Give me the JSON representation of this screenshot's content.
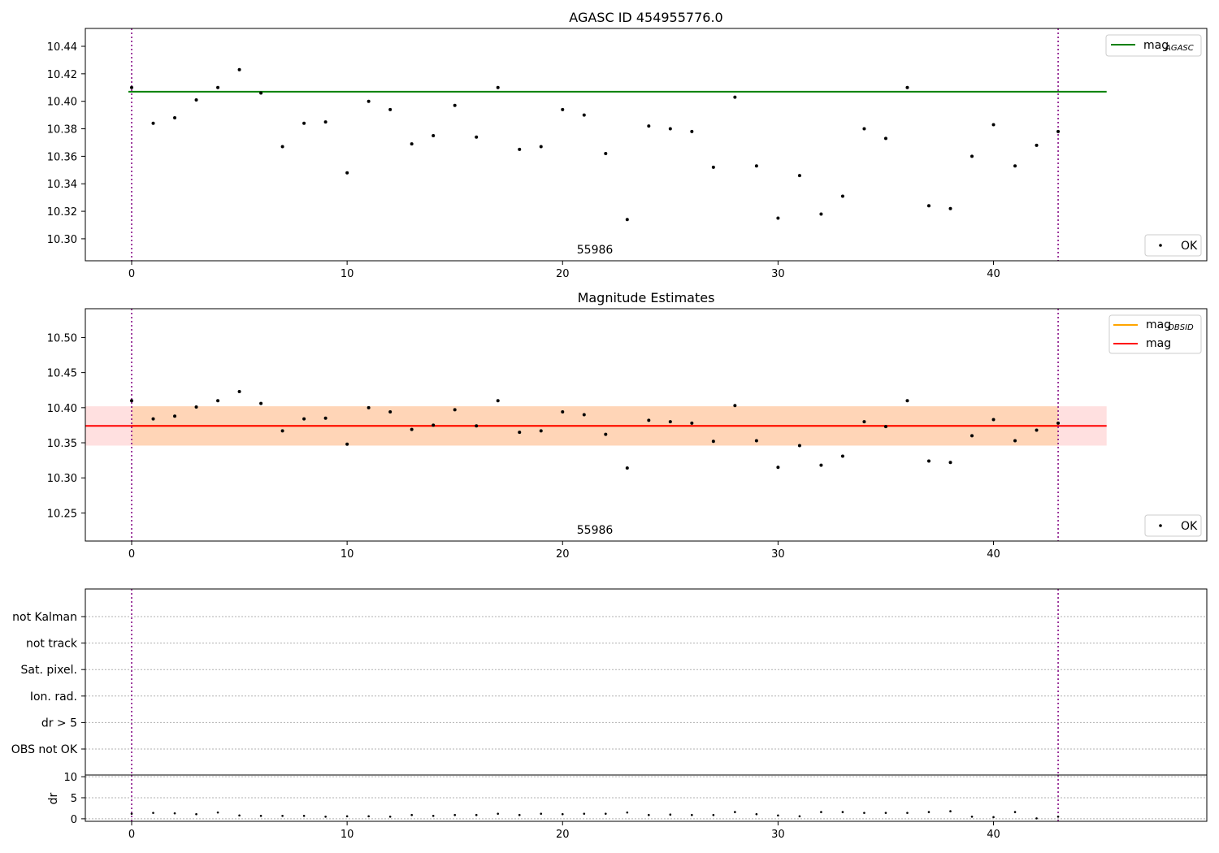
{
  "chart_data": [
    {
      "type": "scatter",
      "title": "AGASC ID 454955776.0",
      "xlim": [
        -2.15,
        49.9
      ],
      "ylim": [
        10.284,
        10.453
      ],
      "xticks": [
        0,
        10,
        20,
        30,
        40
      ],
      "yticks": [
        10.3,
        10.32,
        10.34,
        10.36,
        10.38,
        10.4,
        10.42,
        10.44
      ],
      "x": [
        0,
        1,
        2,
        3,
        4,
        5,
        6,
        7,
        8,
        9,
        10,
        11,
        12,
        13,
        14,
        15,
        16,
        17,
        18,
        19,
        20,
        21,
        22,
        23,
        24,
        25,
        26,
        27,
        28,
        29,
        30,
        31,
        32,
        33,
        34,
        35,
        36,
        37,
        38,
        39,
        40,
        41,
        42,
        43
      ],
      "y": [
        10.41,
        10.384,
        10.388,
        10.401,
        10.41,
        10.423,
        10.406,
        10.367,
        10.384,
        10.385,
        10.348,
        10.4,
        10.394,
        10.369,
        10.375,
        10.397,
        10.374,
        10.41,
        10.365,
        10.367,
        10.394,
        10.39,
        10.362,
        10.314,
        10.382,
        10.38,
        10.378,
        10.352,
        10.403,
        10.353,
        10.315,
        10.346,
        10.318,
        10.331,
        10.38,
        10.373,
        10.41,
        10.324,
        10.322,
        10.36,
        10.383,
        10.353,
        10.368,
        10.378
      ],
      "hline": {
        "y": 10.407,
        "x0": -0.15,
        "x1": 45.25,
        "color": "#008000"
      },
      "vlines": [
        0,
        43
      ],
      "obsid_label": {
        "text": "55986",
        "x": 21.5
      },
      "legend_upper": [
        {
          "label": "mag",
          "sub": "AGASC",
          "color": "#008000"
        }
      ],
      "legend_lower": [
        {
          "label": "OK",
          "color": "#000000"
        }
      ]
    },
    {
      "type": "scatter",
      "title": "Magnitude Estimates",
      "xlim": [
        -2.15,
        49.9
      ],
      "ylim": [
        10.21,
        10.541
      ],
      "xticks": [
        0,
        10,
        20,
        30,
        40
      ],
      "yticks": [
        10.25,
        10.3,
        10.35,
        10.4,
        10.45,
        10.5
      ],
      "x": [
        0,
        1,
        2,
        3,
        4,
        5,
        6,
        7,
        8,
        9,
        10,
        11,
        12,
        13,
        14,
        15,
        16,
        17,
        18,
        19,
        20,
        21,
        22,
        23,
        24,
        25,
        26,
        27,
        28,
        29,
        30,
        31,
        32,
        33,
        34,
        35,
        36,
        37,
        38,
        39,
        40,
        41,
        42,
        43
      ],
      "y": [
        10.41,
        10.384,
        10.388,
        10.401,
        10.41,
        10.423,
        10.406,
        10.367,
        10.384,
        10.385,
        10.348,
        10.4,
        10.394,
        10.369,
        10.375,
        10.397,
        10.374,
        10.41,
        10.365,
        10.367,
        10.394,
        10.39,
        10.362,
        10.314,
        10.382,
        10.38,
        10.378,
        10.352,
        10.403,
        10.353,
        10.315,
        10.346,
        10.318,
        10.331,
        10.38,
        10.373,
        10.41,
        10.324,
        10.322,
        10.36,
        10.383,
        10.353,
        10.368,
        10.378
      ],
      "mag_obsid": {
        "y": 10.374,
        "band": [
          10.346,
          10.402
        ],
        "x0": 0,
        "x1": 43,
        "color": "#ffa500"
      },
      "mag": {
        "y": 10.374,
        "band": [
          10.346,
          10.402
        ],
        "x0": -2.15,
        "x1": 45.25,
        "color": "#ff0000"
      },
      "vlines": [
        0,
        43
      ],
      "obsid_label": {
        "text": "55986",
        "x": 21.5
      },
      "legend_upper": [
        {
          "label": "mag",
          "sub": "OBSID",
          "color": "#ffa500"
        },
        {
          "label": "mag",
          "sub": "",
          "color": "#ff0000"
        }
      ],
      "legend_lower": [
        {
          "label": "OK",
          "color": "#000000"
        }
      ]
    },
    {
      "type": "scatter",
      "title": "",
      "xlim": [
        -2.15,
        49.9
      ],
      "flag_labels": [
        "not Kalman",
        "not track",
        "Sat. pixel.",
        "Ion. rad.",
        "dr > 5",
        "OBS not OK"
      ],
      "vlines": [
        0,
        43
      ]
    },
    {
      "type": "scatter",
      "ylabel": "dr",
      "xlim": [
        -2.15,
        49.9
      ],
      "ylim": [
        -0.6,
        10.4
      ],
      "xticks": [
        0,
        10,
        20,
        30,
        40
      ],
      "yticks": [
        0,
        5,
        10
      ],
      "x": [
        0,
        1,
        2,
        3,
        4,
        5,
        6,
        7,
        8,
        9,
        10,
        11,
        12,
        13,
        14,
        15,
        16,
        17,
        18,
        19,
        20,
        21,
        22,
        23,
        24,
        25,
        26,
        27,
        28,
        29,
        30,
        31,
        32,
        33,
        34,
        35,
        36,
        37,
        38,
        39,
        40,
        41,
        42,
        43
      ],
      "y": [
        1.2,
        1.4,
        1.3,
        1.1,
        1.5,
        0.8,
        0.7,
        0.7,
        0.7,
        0.5,
        0.6,
        0.6,
        0.5,
        0.9,
        0.7,
        0.9,
        0.9,
        1.2,
        0.9,
        1.2,
        1.1,
        1.2,
        1.2,
        1.5,
        0.9,
        1.0,
        0.9,
        0.9,
        1.6,
        1.1,
        0.8,
        0.6,
        1.6,
        1.6,
        1.4,
        1.4,
        1.4,
        1.6,
        1.8,
        0.5,
        0.4,
        1.6,
        0.1,
        0.5
      ],
      "vlines": [
        0,
        43
      ]
    }
  ]
}
